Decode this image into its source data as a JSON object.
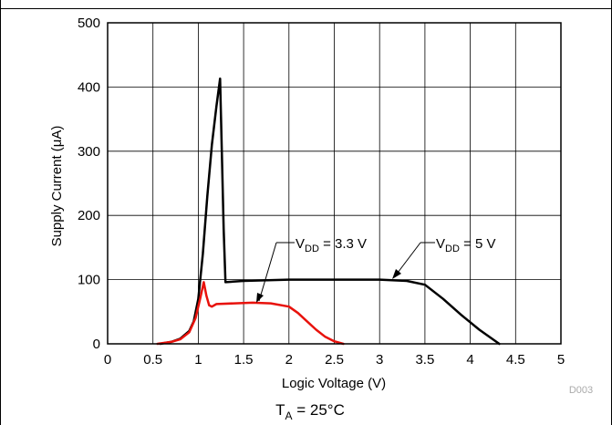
{
  "chart_data": {
    "type": "line",
    "x_axis": {
      "label": "Logic Voltage (V)",
      "range": [
        0,
        5
      ],
      "ticks": [
        0,
        0.5,
        1,
        1.5,
        2,
        2.5,
        3,
        3.5,
        4,
        4.5,
        5
      ],
      "tick_labels": [
        "0",
        "0.5",
        "1",
        "1.5",
        "2",
        "2.5",
        "3",
        "3.5",
        "4",
        "4.5",
        "5"
      ]
    },
    "y_axis": {
      "label": "Supply Current (μA)",
      "range": [
        0,
        500
      ],
      "ticks": [
        0,
        100,
        200,
        300,
        400,
        500
      ],
      "tick_labels": [
        "0",
        "100",
        "200",
        "300",
        "400",
        "500"
      ]
    },
    "grid": true,
    "series": [
      {
        "name": "VDD = 5 V",
        "color": "#000000",
        "points": [
          [
            0.58,
            0
          ],
          [
            0.7,
            3
          ],
          [
            0.8,
            8
          ],
          [
            0.9,
            20
          ],
          [
            0.95,
            35
          ],
          [
            1.0,
            70
          ],
          [
            1.05,
            140
          ],
          [
            1.1,
            230
          ],
          [
            1.15,
            310
          ],
          [
            1.2,
            370
          ],
          [
            1.24,
            413
          ],
          [
            1.26,
            300
          ],
          [
            1.28,
            180
          ],
          [
            1.3,
            96
          ],
          [
            1.5,
            98
          ],
          [
            2.0,
            100
          ],
          [
            2.5,
            100
          ],
          [
            3.0,
            100
          ],
          [
            3.3,
            98
          ],
          [
            3.5,
            92
          ],
          [
            3.7,
            70
          ],
          [
            3.9,
            45
          ],
          [
            4.1,
            22
          ],
          [
            4.25,
            7
          ],
          [
            4.32,
            0
          ]
        ]
      },
      {
        "name": "VDD = 3.3 V",
        "color": "#e8120c",
        "points": [
          [
            0.55,
            0
          ],
          [
            0.7,
            3
          ],
          [
            0.8,
            7
          ],
          [
            0.9,
            18
          ],
          [
            0.97,
            40
          ],
          [
            1.02,
            70
          ],
          [
            1.06,
            96
          ],
          [
            1.09,
            75
          ],
          [
            1.12,
            60
          ],
          [
            1.15,
            58
          ],
          [
            1.2,
            62
          ],
          [
            1.4,
            63
          ],
          [
            1.6,
            64
          ],
          [
            1.8,
            63
          ],
          [
            2.0,
            58
          ],
          [
            2.1,
            48
          ],
          [
            2.2,
            35
          ],
          [
            2.3,
            22
          ],
          [
            2.4,
            11
          ],
          [
            2.5,
            4
          ],
          [
            2.6,
            0
          ]
        ]
      }
    ],
    "annotations": [
      {
        "label_main": "V",
        "label_sub": "DD",
        "label_rest": " = 3.3 V",
        "series": "VDD = 3.3 V"
      },
      {
        "label_main": "V",
        "label_sub": "DD",
        "label_rest": " = 5 V",
        "series": "VDD = 5 V"
      }
    ],
    "footer": {
      "main": "T",
      "sub": "A",
      "rest": " = 25°C"
    },
    "figure_id": "D003"
  }
}
